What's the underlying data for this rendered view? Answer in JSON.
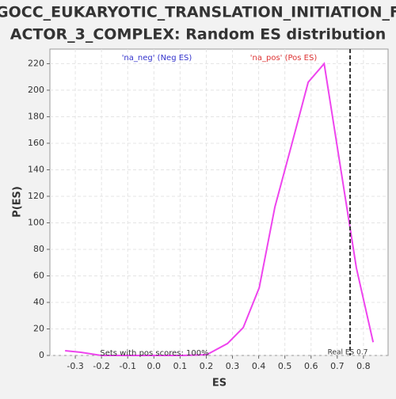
{
  "chart_data": {
    "type": "line",
    "title": [
      "GOCC_EUKARYOTIC_TRANSLATION_INITIATION_F",
      "ACTOR_3_COMPLEX: Random ES distribution"
    ],
    "x_label": "ES",
    "y_label": "P(ES)",
    "x": [
      -0.339,
      -0.279,
      -0.2,
      0,
      0.106,
      0.202,
      0.281,
      0.341,
      0.402,
      0.462,
      0.526,
      0.589,
      0.65,
      0.713,
      0.773,
      0.837
    ],
    "series": [
      {
        "name": "P(ES)",
        "color": "#ee44ee",
        "values": [
          3.6,
          2.4,
          0,
          0,
          0,
          0.6,
          9,
          21,
          51,
          112,
          159,
          206,
          220,
          141,
          66,
          10
        ]
      }
    ],
    "xlim": [
      -0.397,
      0.894
    ],
    "ylim": [
      0,
      231
    ],
    "xticks": [
      -0.3,
      -0.2,
      -0.1,
      {
        "value": 0,
        "label": "0.0"
      },
      0.1,
      0.2,
      0.3,
      0.4,
      0.5,
      0.6,
      0.7,
      0.8
    ],
    "yticks": [
      0,
      20,
      40,
      60,
      80,
      100,
      120,
      140,
      160,
      180,
      200,
      220
    ],
    "grid": true,
    "real_es": {
      "value": 0.749,
      "label": "Real ES 0.7"
    },
    "annotations": [
      {
        "text": "'na_neg' (Neg ES)",
        "color": "#3333cc"
      },
      {
        "text": "'na_pos' (Pos ES)",
        "color": "#dd3333"
      },
      {
        "text": "Sets with pos scores: 100%",
        "color": "#333333"
      }
    ]
  }
}
